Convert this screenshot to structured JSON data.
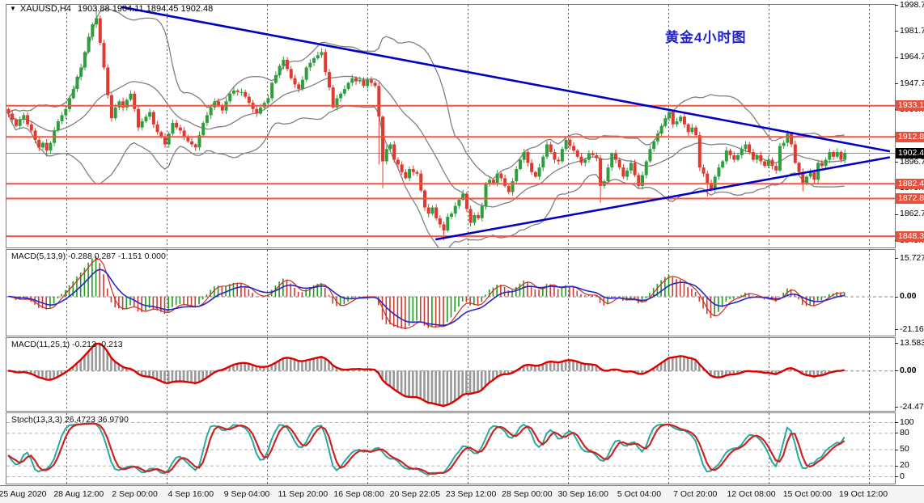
{
  "title": {
    "collapse_icon": "▼",
    "symbol": "XAUUSD,H4",
    "ohlc": "1903.88 1904.11 1894.45 1902.48"
  },
  "annotation": {
    "text": "黄金4小时图",
    "color": "#2222CC"
  },
  "time_axis": {
    "labels": [
      "25 Aug 2020",
      "28 Aug 12:00",
      "2 Sep 00:00",
      "4 Sep 16:00",
      "9 Sep 04:00",
      "11 Sep 20:00",
      "16 Sep 08:00",
      "20 Sep 22:05",
      "23 Sep 12:00",
      "28 Sep 00:00",
      "30 Sep 16:00",
      "5 Oct 04:00",
      "7 Oct 20:00",
      "12 Oct 08:00",
      "15 Oct 00:00",
      "19 Oct 12:00"
    ]
  },
  "colors": {
    "background": "#FFFFFF",
    "panel_border": "#7A7A7A",
    "grid": "rgba(0,0,0,0.65)",
    "candle_up": "#2E9F3E",
    "candle_down": "#E03A30",
    "bollinger": "#808080",
    "trendline": "#0000C8",
    "level_line": "#F4563E",
    "level_badge": "#E8503C",
    "price_line": "#8A8A8A",
    "price_badge": "#000000",
    "macd_bar_up": "#1F9B1F",
    "macd_bar_down": "#CE3B30",
    "macd_fast": "#D02A22",
    "macd_slow": "#2828C0",
    "macd2_bar": "#989898",
    "macd2_line": "#DD0000",
    "stoch_main": "#2AA8A0",
    "stoch_signal": "#CC2222",
    "zero_line": "#888888",
    "stoch_grid": "#B5B5B5"
  },
  "chart_data": [
    {
      "type": "candlestick",
      "symbol": "XAUUSD",
      "timeframe": "H4",
      "current_bar": {
        "open": 1903.88,
        "high": 1904.11,
        "low": 1894.45,
        "close": 1902.48
      },
      "current_price": 1902.48,
      "y_axis": {
        "max": 1998.7,
        "min": 1841.0,
        "ticks": [
          1998.7,
          1981.7,
          1964.7,
          1947.7,
          1930.7,
          1913.7,
          1896.7,
          1879.7,
          1862.7,
          1845.7
        ]
      },
      "levels": [
        1933.14,
        1912.89,
        1882.41,
        1872.82,
        1848.32
      ],
      "bollinger": {
        "period": 20,
        "deviation": 2
      },
      "trendlines": [
        {
          "i1": 29.7,
          "p1": 1997.3,
          "i2": 230.9,
          "p2": 1903.5
        },
        {
          "i1": 111.9,
          "p1": 1846.2,
          "i2": 230.9,
          "p2": 1899.6
        }
      ],
      "first_open": 1931,
      "closes": [
        1928,
        1924,
        1920,
        1924,
        1927,
        1921,
        1917,
        1911,
        1906,
        1909,
        1904,
        1909,
        1917,
        1923,
        1927,
        1931,
        1938,
        1944,
        1952,
        1958,
        1968,
        1978,
        1986,
        1990,
        1974,
        1958,
        1940,
        1925,
        1932,
        1936,
        1932,
        1937,
        1941,
        1931,
        1919,
        1923,
        1926,
        1929,
        1921,
        1916,
        1913,
        1908,
        1915,
        1922,
        1919,
        1917,
        1913,
        1910,
        1908,
        1906,
        1914,
        1922,
        1927,
        1932,
        1936,
        1933,
        1930,
        1936,
        1941,
        1943,
        1942,
        1942,
        1939,
        1935,
        1931,
        1928,
        1932,
        1935,
        1938,
        1948,
        1953,
        1959,
        1963,
        1957,
        1951,
        1947,
        1944,
        1950,
        1958,
        1961,
        1964,
        1966,
        1968,
        1955,
        1945,
        1932,
        1938,
        1941,
        1944,
        1948,
        1951,
        1949,
        1950,
        1946,
        1950,
        1948,
        1946,
        1926,
        1897,
        1905,
        1908,
        1898,
        1895,
        1890,
        1886,
        1892,
        1890,
        1889,
        1878,
        1867,
        1863,
        1867,
        1860,
        1856,
        1852,
        1861,
        1863,
        1868,
        1872,
        1876,
        1866,
        1857,
        1862,
        1860,
        1868,
        1882,
        1885,
        1883,
        1889,
        1886,
        1881,
        1877,
        1884,
        1892,
        1898,
        1903,
        1896,
        1890,
        1887,
        1893,
        1900,
        1908,
        1903,
        1898,
        1897,
        1905,
        1911,
        1907,
        1904,
        1900,
        1896,
        1898,
        1902,
        1901,
        1899,
        1881,
        1884,
        1893,
        1902,
        1898,
        1893,
        1887,
        1891,
        1896,
        1888,
        1881,
        1888,
        1897,
        1905,
        1910,
        1915,
        1920,
        1925,
        1929,
        1921,
        1923,
        1926,
        1921,
        1916,
        1919,
        1914,
        1893,
        1889,
        1883,
        1879,
        1887,
        1893,
        1897,
        1904,
        1901,
        1898,
        1901,
        1905,
        1908,
        1903,
        1898,
        1901,
        1897,
        1894,
        1898,
        1894,
        1891,
        1907,
        1909,
        1915,
        1908,
        1896,
        1890,
        1883,
        1887,
        1890,
        1885,
        1896,
        1894,
        1898,
        1903,
        1900,
        1903,
        1898,
        1902.5
      ],
      "extra_wicks": {
        "10": [
          null,
          1900
        ],
        "23": [
          1997,
          null
        ],
        "82": [
          1970.5,
          null
        ],
        "97": [
          null,
          1895
        ],
        "98": [
          null,
          1879.5
        ],
        "114": [
          null,
          1845.7
        ],
        "155": [
          null,
          1870
        ],
        "173": [
          1931.2,
          null
        ],
        "183": [
          null,
          1874
        ],
        "204": [
          1917.2,
          null
        ],
        "208": [
          null,
          1877.5
        ]
      }
    },
    {
      "type": "macd_histogram",
      "label_full": "MACD(5,13,9) -0.288 0.287 -1.151 0.000",
      "params": {
        "fast": 5,
        "slow": 13,
        "signal": 9
      },
      "current_values": [
        -0.288,
        0.287,
        -1.151,
        0.0
      ],
      "y_ticks": [
        15.727,
        0.0,
        -21.161
      ]
    },
    {
      "type": "macd_filled",
      "label_full": "MACD(11,25,1) -0.213 -0.213",
      "params": {
        "fast": 11,
        "slow": 25,
        "signal": 1
      },
      "current_values": [
        -0.213,
        -0.213
      ],
      "y_ticks": [
        13.583,
        0.0,
        -24.472
      ]
    },
    {
      "type": "stochastic",
      "label_full": "Stoch(13,3,3) 26.4723 36.9790",
      "params": {
        "k_period": 13,
        "d_period": 3,
        "slowing": 3
      },
      "current_values": [
        26.4723,
        36.979
      ],
      "y_ticks": [
        100,
        80,
        50,
        20,
        0
      ],
      "dashed_levels": [
        100,
        80,
        50,
        20,
        0
      ]
    }
  ]
}
